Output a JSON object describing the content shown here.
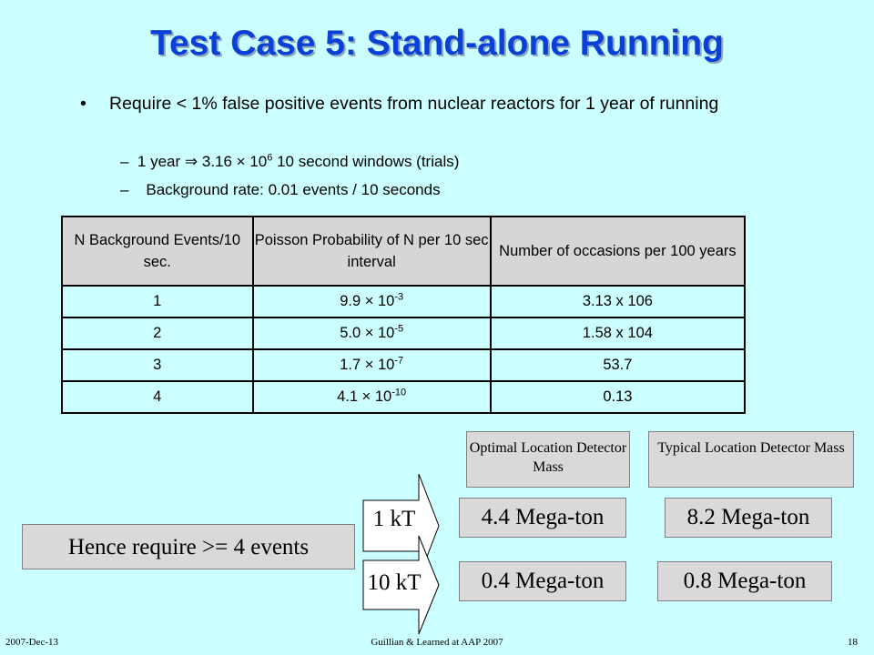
{
  "title": "Test Case 5: Stand-alone Running",
  "bullets": {
    "main_marker": "•",
    "main": "Require < 1% false positive events from nuclear reactors for 1 year of running",
    "sub_marker": "–",
    "sub1_pre": "1 year ⇒ 3.16 × 10",
    "sub1_exp": "6",
    "sub1_post": " 10 second windows (trials)",
    "sub2": "Background rate: 0.01 events / 10 seconds"
  },
  "table": {
    "headers": [
      "N Background Events/10 sec.",
      "Poisson Probability of N per 10 sec interval",
      "Number of occasions per 100 years"
    ],
    "rows": [
      {
        "n": "1",
        "prob_base": "9.9 × 10",
        "prob_exp": "-3",
        "occ": "3.13 x 106"
      },
      {
        "n": "2",
        "prob_base": "5.0 × 10",
        "prob_exp": "-5",
        "occ": "1.58 x 104"
      },
      {
        "n": "3",
        "prob_base": "1.7 × 10",
        "prob_exp": "-7",
        "occ": "53.7"
      },
      {
        "n": "4",
        "prob_base": "4.1 × 10",
        "prob_exp": "-10",
        "occ": "0.13"
      }
    ]
  },
  "conclusion": "Hence require >= 4 events",
  "detector": {
    "optimal_header": "Optimal Location Detector Mass",
    "typical_header": "Typical Location Detector Mass",
    "rows": [
      {
        "label": "1 kT",
        "optimal": "4.4 Mega-ton",
        "typical": "8.2 Mega-ton"
      },
      {
        "label": "10 kT",
        "optimal": "0.4 Mega-ton",
        "typical": "0.8 Mega-ton"
      }
    ]
  },
  "footer": {
    "date": "2007-Dec-13",
    "center": "Guillian & Learned at AAP 2007",
    "page": "18"
  }
}
